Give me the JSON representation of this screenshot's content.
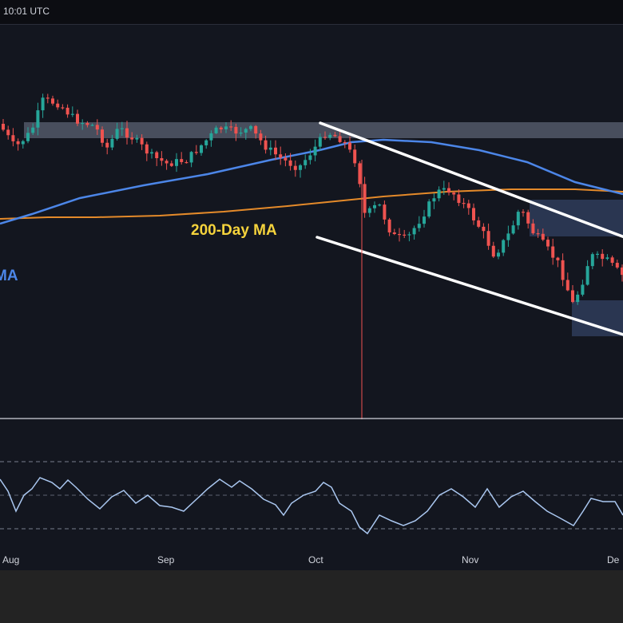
{
  "header": {
    "time": "10:01 UTC"
  },
  "annotations": {
    "ma200_label": "200-Day MA",
    "ma100_label_fragment": "MA"
  },
  "colors": {
    "up": "#26a69a",
    "down": "#ef5350",
    "ma100": "#4c86e8",
    "ma200": "#e48a2a",
    "ma200_label": "#f5d33c",
    "ma100_label": "#4c86e8",
    "rsi": "#aac7f0",
    "zone": "#2f3c5a",
    "zone_light": "#8a93a8"
  },
  "chart_data": [
    {
      "type": "candlestick",
      "title": "",
      "x_ticks": [
        "Aug",
        "Sep",
        "Oct",
        "Nov",
        "De"
      ],
      "overlays": [
        "100-day moving average (blue)",
        "200-day moving average (orange)",
        "descending channel (white lines)",
        "supply/demand zones (shaded)"
      ],
      "grid": false,
      "legend": "none"
    },
    {
      "type": "line",
      "title": "",
      "series": [
        {
          "name": "",
          "description": "RSI oscillator"
        }
      ],
      "reference_lines": [
        "upper dashed",
        "middle dashed",
        "lower dashed"
      ],
      "x_ticks": [
        "Aug",
        "Sep",
        "Oct",
        "Nov",
        "De"
      ]
    }
  ]
}
